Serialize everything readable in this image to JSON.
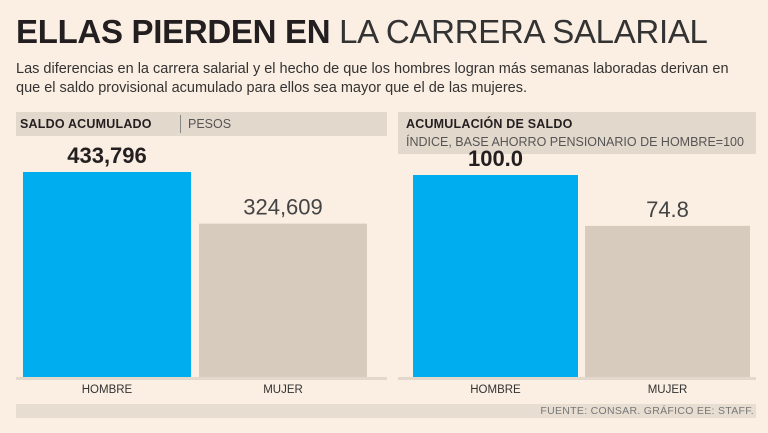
{
  "title": {
    "bold": "ELLAS PIERDEN EN",
    "light": "LA CARRERA SALARIAL"
  },
  "subtitle": "Las diferencias en la carrera salarial y el hecho de que los hombres logran más semanas laboradas derivan en que el saldo provisional acumulado para ellos sea mayor que el de las mujeres.",
  "panels": {
    "left": {
      "label_bold": "SALDO ACUMULADO",
      "label_light": "PESOS"
    },
    "right": {
      "label_bold": "ACUMULACIÓN DE SALDO",
      "label_light": "ÍNDICE, BASE AHORRO PENSIONARIO DE HOMBRE=100"
    }
  },
  "colors": {
    "hombre": "#00aeef",
    "mujer": "#d7cbbd",
    "axis": "#e3d8cc"
  },
  "source": "FUENTE: CONSAR. GRÁFICO EE: STAFF.",
  "chart_data": [
    {
      "type": "bar",
      "title": "SALDO ACUMULADO",
      "ylabel": "PESOS",
      "categories": [
        "HOMBRE",
        "MUJER"
      ],
      "values": [
        433796,
        324609
      ],
      "value_labels": [
        "433,796",
        "324,609"
      ],
      "ylim": [
        0,
        560000
      ]
    },
    {
      "type": "bar",
      "title": "ACUMULACIÓN DE SALDO",
      "ylabel": "ÍNDICE, BASE AHORRO PENSIONARIO DE HOMBRE=100",
      "categories": [
        "HOMBRE",
        "MUJER"
      ],
      "values": [
        100.0,
        74.8
      ],
      "value_labels": [
        "100.0",
        "74.8"
      ],
      "ylim": [
        0,
        110
      ]
    }
  ]
}
